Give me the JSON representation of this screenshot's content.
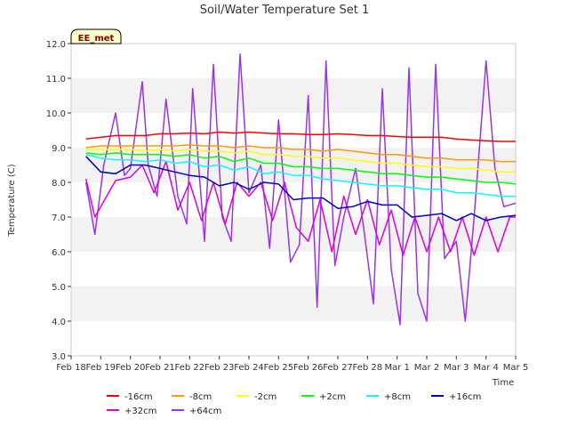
{
  "chart_data": {
    "type": "line",
    "title": "Soil/Water Temperature Set 1",
    "xlabel": "Time",
    "ylabel": "Temperature (C)",
    "badge": "EE_met",
    "ylim": [
      3.0,
      12.0
    ],
    "yticks": [
      "3.0",
      "4.0",
      "5.0",
      "6.0",
      "7.0",
      "8.0",
      "9.0",
      "10.0",
      "11.0",
      "12.0"
    ],
    "xticks": [
      "Feb 18",
      "Feb 19",
      "Feb 20",
      "Feb 21",
      "Feb 22",
      "Feb 23",
      "Feb 24",
      "Feb 25",
      "Feb 26",
      "Feb 27",
      "Feb 28",
      "Mar 1",
      "Mar 2",
      "Mar 3",
      "Mar 4",
      "Mar 5"
    ],
    "grid": "horizontal bands",
    "legend_position": "bottom",
    "colors": {
      "-16cm": "#ff0000",
      "-8cm": "#ff9900",
      "-2cm": "#ffff00",
      "+2cm": "#00ff00",
      "+8cm": "#00ffff",
      "+16cm": "#0000cc",
      "+32cm": "#dd00dd",
      "+64cm": "#9933ee"
    },
    "series": [
      {
        "name": "-16cm",
        "x": [
          18.5,
          19,
          19.5,
          20,
          20.5,
          21,
          21.5,
          22,
          22.5,
          23,
          23.5,
          24,
          24.5,
          25,
          25.5,
          26,
          26.5,
          27,
          27.5,
          28,
          28.5,
          29,
          29.5,
          30,
          30.5,
          31,
          31.5,
          32,
          32.5,
          33
        ],
        "values": [
          9.25,
          9.3,
          9.35,
          9.35,
          9.35,
          9.4,
          9.4,
          9.42,
          9.4,
          9.45,
          9.42,
          9.45,
          9.42,
          9.4,
          9.4,
          9.38,
          9.38,
          9.4,
          9.38,
          9.35,
          9.35,
          9.32,
          9.3,
          9.3,
          9.3,
          9.25,
          9.22,
          9.2,
          9.18,
          9.18
        ]
      },
      {
        "name": "-8cm",
        "x": [
          18.5,
          19,
          19.5,
          20,
          20.5,
          21,
          21.5,
          22,
          22.5,
          23,
          23.5,
          24,
          24.5,
          25,
          25.5,
          26,
          26.5,
          27,
          27.5,
          28,
          28.5,
          29,
          29.5,
          30,
          30.5,
          31,
          31.5,
          32,
          32.5,
          33
        ],
        "values": [
          9.0,
          9.05,
          9.05,
          9.05,
          9.05,
          9.05,
          9.05,
          9.08,
          9.05,
          9.05,
          9.0,
          9.05,
          9.0,
          9.0,
          8.95,
          8.95,
          8.9,
          8.95,
          8.9,
          8.85,
          8.8,
          8.8,
          8.75,
          8.7,
          8.7,
          8.65,
          8.65,
          8.65,
          8.6,
          8.6
        ]
      },
      {
        "name": "-2cm",
        "x": [
          18.5,
          19,
          19.5,
          20,
          20.5,
          21,
          21.5,
          22,
          22.5,
          23,
          23.5,
          24,
          24.5,
          25,
          25.5,
          26,
          26.5,
          27,
          27.5,
          28,
          28.5,
          29,
          29.5,
          30,
          30.5,
          31,
          31.5,
          32,
          32.5,
          33
        ],
        "values": [
          8.95,
          8.95,
          8.95,
          8.95,
          8.9,
          8.95,
          8.9,
          8.95,
          8.9,
          8.9,
          8.85,
          8.9,
          8.8,
          8.8,
          8.75,
          8.75,
          8.7,
          8.7,
          8.65,
          8.6,
          8.55,
          8.55,
          8.5,
          8.45,
          8.45,
          8.4,
          8.4,
          8.35,
          8.3,
          8.3
        ]
      },
      {
        "name": "+2cm",
        "x": [
          18.5,
          19,
          19.5,
          20,
          20.5,
          21,
          21.5,
          22,
          22.5,
          23,
          23.5,
          24,
          24.5,
          25,
          25.5,
          26,
          26.5,
          27,
          27.5,
          28,
          28.5,
          29,
          29.5,
          30,
          30.5,
          31,
          31.5,
          32,
          32.5,
          33
        ],
        "values": [
          8.85,
          8.8,
          8.85,
          8.8,
          8.8,
          8.8,
          8.75,
          8.8,
          8.7,
          8.75,
          8.6,
          8.7,
          8.55,
          8.55,
          8.45,
          8.45,
          8.4,
          8.4,
          8.35,
          8.3,
          8.25,
          8.25,
          8.2,
          8.15,
          8.15,
          8.1,
          8.05,
          8.0,
          8.0,
          7.95
        ]
      },
      {
        "name": "+8cm",
        "x": [
          18.5,
          19,
          19.5,
          20,
          20.5,
          21,
          21.5,
          22,
          22.5,
          23,
          23.5,
          24,
          24.5,
          25,
          25.5,
          26,
          26.5,
          27,
          27.5,
          28,
          28.5,
          29,
          29.5,
          30,
          30.5,
          31,
          31.5,
          32,
          32.5,
          33
        ],
        "values": [
          8.8,
          8.7,
          8.65,
          8.65,
          8.6,
          8.65,
          8.55,
          8.6,
          8.45,
          8.5,
          8.35,
          8.45,
          8.25,
          8.3,
          8.2,
          8.2,
          8.1,
          8.05,
          8.0,
          7.95,
          7.9,
          7.9,
          7.85,
          7.8,
          7.8,
          7.7,
          7.7,
          7.65,
          7.6,
          7.6
        ]
      },
      {
        "name": "+16cm",
        "x": [
          18.5,
          19,
          19.5,
          20,
          20.5,
          21,
          21.5,
          22,
          22.5,
          23,
          23.5,
          24,
          24.5,
          25,
          25.5,
          26,
          26.5,
          27,
          27.5,
          28,
          28.5,
          29,
          29.5,
          30,
          30.5,
          31,
          31.5,
          32,
          32.5,
          33
        ],
        "values": [
          8.75,
          8.3,
          8.25,
          8.5,
          8.5,
          8.4,
          8.3,
          8.2,
          8.15,
          7.9,
          8.0,
          7.8,
          8.0,
          7.95,
          7.5,
          7.55,
          7.55,
          7.25,
          7.3,
          7.45,
          7.35,
          7.35,
          7.0,
          7.05,
          7.1,
          6.9,
          7.1,
          6.9,
          7.0,
          7.05
        ]
      },
      {
        "name": "+32cm",
        "x": [
          18.5,
          18.8,
          19.2,
          19.5,
          20,
          20.4,
          20.8,
          21.2,
          21.6,
          22,
          22.4,
          22.8,
          23.2,
          23.6,
          24,
          24.4,
          24.8,
          25.2,
          25.6,
          26,
          26.4,
          26.8,
          27.2,
          27.6,
          28,
          28.4,
          28.8,
          29.2,
          29.6,
          30,
          30.4,
          30.8,
          31.2,
          31.6,
          32,
          32.4,
          32.8,
          33
        ],
        "values": [
          8.1,
          7.0,
          7.6,
          8.05,
          8.15,
          8.5,
          7.7,
          8.6,
          7.2,
          8.0,
          6.9,
          8.0,
          6.8,
          8.0,
          7.6,
          8.0,
          6.9,
          8.0,
          6.7,
          6.3,
          7.5,
          6.0,
          7.6,
          6.5,
          7.5,
          6.2,
          7.2,
          5.9,
          7.0,
          6.0,
          7.0,
          6.0,
          7.0,
          5.9,
          7.0,
          6.0,
          7.0,
          7.0
        ]
      },
      {
        "name": "+64cm",
        "x": [
          18.5,
          18.8,
          19.1,
          19.5,
          19.8,
          20,
          20.4,
          20.6,
          20.9,
          21.2,
          21.6,
          21.9,
          22.1,
          22.5,
          22.8,
          23.1,
          23.4,
          23.7,
          24,
          24.4,
          24.7,
          25.0,
          25.4,
          25.7,
          26.0,
          26.3,
          26.6,
          26.9,
          27.2,
          27.6,
          27.9,
          28.2,
          28.5,
          28.8,
          29.1,
          29.4,
          29.7,
          30.0,
          30.3,
          30.6,
          31.0,
          31.3,
          31.6,
          32.0,
          32.3,
          32.6,
          33
        ],
        "values": [
          8.0,
          6.5,
          8.5,
          10.0,
          8.2,
          8.4,
          10.9,
          8.5,
          7.6,
          10.4,
          7.6,
          6.8,
          10.7,
          6.3,
          11.4,
          7.0,
          6.3,
          11.7,
          7.7,
          8.5,
          6.1,
          9.8,
          5.7,
          6.2,
          10.5,
          4.4,
          11.5,
          5.6,
          7.0,
          8.4,
          6.5,
          4.5,
          10.7,
          5.5,
          3.9,
          11.3,
          4.8,
          4.0,
          11.4,
          5.8,
          6.3,
          4.0,
          7.0,
          11.5,
          8.4,
          7.3,
          7.4
        ]
      }
    ]
  }
}
